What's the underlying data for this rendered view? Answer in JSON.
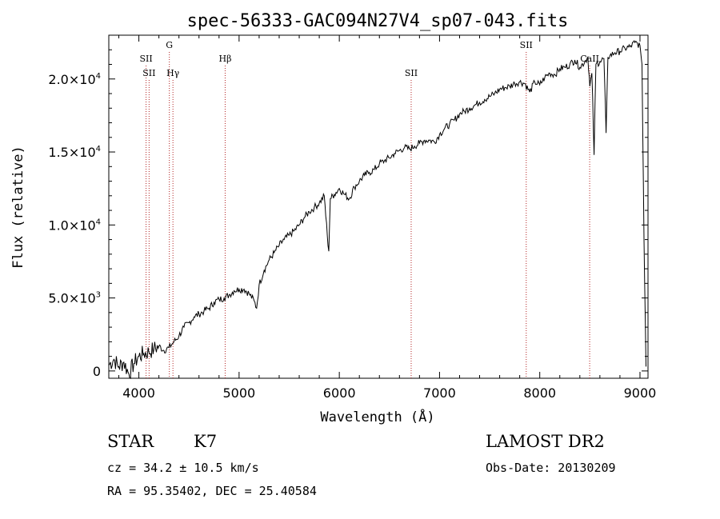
{
  "chart_data": {
    "type": "line",
    "title": "spec-56333-GAC094N27V4_sp07-043.fits",
    "xlabel": "Wavelength (Å)",
    "ylabel": "Flux (relative)",
    "xlim": [
      3700,
      9080
    ],
    "ylim": [
      -500,
      23000
    ],
    "x_ticks": [
      {
        "value": 4000,
        "label": "4000"
      },
      {
        "value": 5000,
        "label": "5000"
      },
      {
        "value": 6000,
        "label": "6000"
      },
      {
        "value": 7000,
        "label": "7000"
      },
      {
        "value": 8000,
        "label": "8000"
      },
      {
        "value": 9000,
        "label": "9000"
      }
    ],
    "y_ticks": [
      {
        "value": 0,
        "mantissa": "0",
        "exponent": ""
      },
      {
        "value": 5000,
        "mantissa": "5.0×10",
        "exponent": "3"
      },
      {
        "value": 10000,
        "mantissa": "1.0×10",
        "exponent": "4"
      },
      {
        "value": 15000,
        "mantissa": "1.5×10",
        "exponent": "4"
      },
      {
        "value": 20000,
        "mantissa": "2.0×10",
        "exponent": "4"
      }
    ],
    "series": [
      {
        "color": "#000000",
        "x": [
          3700,
          3750,
          3800,
          3850,
          3900,
          3950,
          4000,
          4050,
          4100,
          4150,
          4200,
          4250,
          4300,
          4350,
          4400,
          4450,
          4500,
          4550,
          4600,
          4650,
          4700,
          4750,
          4800,
          4850,
          4900,
          4950,
          5000,
          5050,
          5100,
          5150,
          5175,
          5200,
          5250,
          5300,
          5350,
          5400,
          5450,
          5500,
          5550,
          5600,
          5650,
          5700,
          5750,
          5800,
          5850,
          5880,
          5895,
          5910,
          5950,
          6000,
          6050,
          6100,
          6150,
          6200,
          6250,
          6300,
          6350,
          6400,
          6450,
          6500,
          6550,
          6600,
          6650,
          6700,
          6750,
          6800,
          6850,
          6900,
          6950,
          7000,
          7050,
          7100,
          7150,
          7200,
          7250,
          7300,
          7350,
          7400,
          7450,
          7500,
          7550,
          7600,
          7650,
          7700,
          7750,
          7800,
          7850,
          7900,
          7950,
          8000,
          8050,
          8100,
          8150,
          8200,
          8250,
          8300,
          8350,
          8400,
          8450,
          8480,
          8500,
          8520,
          8542,
          8560,
          8600,
          8640,
          8662,
          8680,
          8700,
          8750,
          8800,
          8850,
          8900,
          8950,
          9000,
          9020,
          9040,
          9060
        ],
        "y": [
          400,
          800,
          300,
          600,
          -200,
          500,
          1000,
          1200,
          1300,
          1500,
          1700,
          1400,
          1600,
          2000,
          2400,
          3000,
          3300,
          3700,
          3900,
          4100,
          4300,
          4700,
          4900,
          5000,
          5200,
          5500,
          5600,
          5600,
          5300,
          4800,
          4300,
          5900,
          6900,
          7600,
          8100,
          8600,
          9000,
          9300,
          9600,
          10000,
          10500,
          10900,
          11200,
          11500,
          12000,
          9300,
          8200,
          11800,
          12100,
          12500,
          12100,
          11800,
          12600,
          13000,
          13400,
          13600,
          13800,
          14200,
          14400,
          14600,
          14900,
          15100,
          15300,
          15200,
          15400,
          15600,
          15800,
          15800,
          15700,
          16200,
          16600,
          16900,
          17200,
          17600,
          17800,
          18000,
          18200,
          18400,
          18600,
          18800,
          19000,
          19300,
          19400,
          19500,
          19700,
          19800,
          19700,
          19100,
          19800,
          19600,
          20100,
          20400,
          20300,
          20700,
          20800,
          21000,
          21300,
          20800,
          21200,
          21500,
          19500,
          20400,
          14800,
          21000,
          21200,
          21400,
          16300,
          21500,
          21600,
          21800,
          21900,
          22100,
          22200,
          22500,
          22300,
          21000,
          9000,
          300
        ]
      }
    ],
    "line_markers": [
      {
        "wavelength": 4072,
        "label": "SII",
        "sub": "",
        "row": 1
      },
      {
        "wavelength": 4102,
        "label": "SII",
        "sub": "",
        "row": 2
      },
      {
        "wavelength": 4304,
        "label": "G",
        "sub": "",
        "row": 0
      },
      {
        "wavelength": 4340,
        "label": "H",
        "sub": "γ",
        "row": 2
      },
      {
        "wavelength": 4861,
        "label": "H",
        "sub": "β",
        "row": 1
      },
      {
        "wavelength": 6717,
        "label": "SII",
        "sub": "",
        "row": 2
      },
      {
        "wavelength": 7865,
        "label": "SII",
        "sub": "",
        "row": 0
      },
      {
        "wavelength": 8498,
        "label": "CaII",
        "sub": "",
        "row": 1
      }
    ],
    "grid": false,
    "legend": "none"
  },
  "info": {
    "object_class": "STAR",
    "subclass": "K7",
    "survey": "LAMOST DR2",
    "cz": "cz = 34.2 ± 10.5 km/s",
    "obs_date": "Obs-Date: 20130209",
    "coords": "RA =  95.35402, DEC =  25.40584"
  }
}
